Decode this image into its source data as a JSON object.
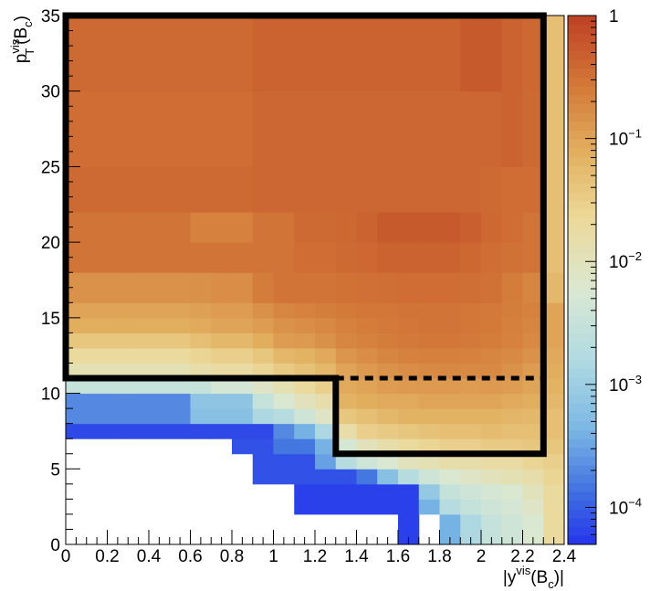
{
  "chart_data": {
    "type": "heatmap",
    "title": "",
    "x_bins": [
      0,
      0.3,
      0.6,
      0.7,
      0.8,
      0.9,
      1.0,
      1.1,
      1.2,
      1.3,
      1.4,
      1.5,
      1.6,
      1.7,
      1.8,
      1.9,
      2.0,
      2.1,
      2.2,
      2.3,
      2.4
    ],
    "y_bins": [
      0,
      2,
      3,
      4,
      5,
      6,
      7,
      8,
      9,
      10,
      11,
      12,
      13,
      14,
      15,
      16,
      18,
      20,
      22,
      25,
      30,
      35
    ],
    "xlim": [
      0,
      2.4
    ],
    "ylim": [
      0,
      35
    ],
    "zlim": [
      5e-05,
      1
    ],
    "z_log": true,
    "xlabel": {
      "main": "|y",
      "sup": "vis",
      "mid": "(B",
      "sub": "c",
      "end": ")|"
    },
    "ylabel": {
      "main": "p",
      "sup": "vis",
      "sub": "T",
      "mid": "(B",
      "sub2": "c",
      "end": ")"
    },
    "x_ticks": [
      0,
      0.2,
      0.4,
      0.6,
      0.8,
      1,
      1.2,
      1.4,
      1.6,
      1.8,
      2,
      2.2,
      2.4
    ],
    "x_tick_labels": [
      "0",
      "0.2",
      "0.4",
      "0.6",
      "0.8",
      "1",
      "1.2",
      "1.4",
      "1.6",
      "1.8",
      "2",
      "2.2",
      "2.4"
    ],
    "y_ticks": [
      0,
      5,
      10,
      15,
      20,
      25,
      30,
      35
    ],
    "y_tick_labels": [
      "0",
      "5",
      "10",
      "15",
      "20",
      "25",
      "30",
      "35"
    ],
    "palette_ticks": [
      {
        "value": 1,
        "label": "1"
      },
      {
        "value": 0.1,
        "label": "10",
        "exp": "−1"
      },
      {
        "value": 0.01,
        "label": "10",
        "exp": "−2"
      },
      {
        "value": 0.001,
        "label": "10",
        "exp": "−3"
      },
      {
        "value": 0.0001,
        "label": "10",
        "exp": "−4"
      }
    ],
    "z": [
      [
        0,
        0,
        0,
        0,
        0,
        0,
        0,
        0,
        0,
        0,
        0,
        0,
        6e-05,
        0,
        0.0004,
        0.0015,
        0.003,
        0.004,
        0.006,
        0.02
      ],
      [
        0,
        0,
        0,
        0,
        0,
        0,
        0,
        6e-05,
        6e-05,
        6e-05,
        6e-05,
        6e-05,
        6e-05,
        0.0004,
        0.002,
        0.003,
        0.004,
        0.005,
        0.008,
        0.02
      ],
      [
        0,
        0,
        0,
        0,
        0,
        0,
        0,
        6e-05,
        6e-05,
        6e-05,
        6e-05,
        6e-05,
        6e-05,
        0.0008,
        0.003,
        0.004,
        0.005,
        0.006,
        0.01,
        0.02
      ],
      [
        0,
        0,
        0,
        0,
        0,
        8e-05,
        8e-05,
        8e-05,
        8e-05,
        8e-05,
        0.00015,
        0.0006,
        0.002,
        0.004,
        0.006,
        0.008,
        0.01,
        0.012,
        0.015,
        0.025
      ],
      [
        0,
        0,
        0,
        0,
        0,
        8e-05,
        8e-05,
        8e-05,
        0.0003,
        0.002,
        0.004,
        0.006,
        0.01,
        0.012,
        0.015,
        0.015,
        0.018,
        0.018,
        0.025,
        0.03
      ],
      [
        0,
        0,
        0,
        0,
        8e-05,
        8e-05,
        0.00015,
        0.00015,
        0.0004,
        0.005,
        0.01,
        0.015,
        0.02,
        0.025,
        0.03,
        0.03,
        0.035,
        0.035,
        0.04,
        0.04
      ],
      [
        7e-05,
        7e-05,
        7e-05,
        7e-05,
        7e-05,
        7e-05,
        0.0002,
        0.0004,
        0.0015,
        0.015,
        0.03,
        0.035,
        0.04,
        0.045,
        0.05,
        0.05,
        0.055,
        0.05,
        0.05,
        0.05
      ],
      [
        0.0002,
        0.0002,
        0.0006,
        0.0006,
        0.0006,
        0.0015,
        0.002,
        0.004,
        0.008,
        0.04,
        0.05,
        0.06,
        0.07,
        0.07,
        0.07,
        0.07,
        0.07,
        0.065,
        0.06,
        0.05
      ],
      [
        0.0002,
        0.0002,
        0.0007,
        0.0007,
        0.0007,
        0.003,
        0.006,
        0.01,
        0.015,
        0.07,
        0.08,
        0.09,
        0.09,
        0.1,
        0.1,
        0.1,
        0.1,
        0.09,
        0.08,
        0.06
      ],
      [
        0.003,
        0.003,
        0.003,
        0.005,
        0.005,
        0.008,
        0.012,
        0.02,
        0.03,
        0.09,
        0.1,
        0.12,
        0.13,
        0.13,
        0.13,
        0.12,
        0.13,
        0.12,
        0.1,
        0.07
      ],
      [
        0.012,
        0.012,
        0.015,
        0.018,
        0.018,
        0.025,
        0.035,
        0.045,
        0.06,
        0.1,
        0.13,
        0.15,
        0.17,
        0.18,
        0.19,
        0.18,
        0.18,
        0.15,
        0.12,
        0.08
      ],
      [
        0.02,
        0.02,
        0.025,
        0.03,
        0.03,
        0.04,
        0.06,
        0.07,
        0.09,
        0.14,
        0.17,
        0.2,
        0.22,
        0.23,
        0.23,
        0.22,
        0.2,
        0.18,
        0.15,
        0.09
      ],
      [
        0.04,
        0.04,
        0.05,
        0.06,
        0.06,
        0.08,
        0.12,
        0.13,
        0.16,
        0.2,
        0.22,
        0.25,
        0.27,
        0.28,
        0.28,
        0.27,
        0.25,
        0.22,
        0.18,
        0.1
      ],
      [
        0.08,
        0.08,
        0.09,
        0.1,
        0.1,
        0.12,
        0.15,
        0.17,
        0.19,
        0.22,
        0.25,
        0.27,
        0.28,
        0.3,
        0.3,
        0.28,
        0.26,
        0.23,
        0.2,
        0.1
      ],
      [
        0.1,
        0.1,
        0.11,
        0.12,
        0.12,
        0.16,
        0.2,
        0.22,
        0.24,
        0.26,
        0.28,
        0.28,
        0.3,
        0.3,
        0.3,
        0.28,
        0.27,
        0.24,
        0.22,
        0.1
      ],
      [
        0.15,
        0.15,
        0.16,
        0.17,
        0.17,
        0.25,
        0.3,
        0.3,
        0.3,
        0.32,
        0.33,
        0.34,
        0.35,
        0.35,
        0.35,
        0.34,
        0.32,
        0.25,
        0.2,
        0.06
      ],
      [
        0.3,
        0.3,
        0.3,
        0.3,
        0.3,
        0.3,
        0.3,
        0.35,
        0.35,
        0.38,
        0.4,
        0.45,
        0.45,
        0.45,
        0.45,
        0.4,
        0.35,
        0.32,
        0.3,
        0.05
      ],
      [
        0.3,
        0.3,
        0.22,
        0.22,
        0.22,
        0.3,
        0.3,
        0.38,
        0.38,
        0.4,
        0.45,
        0.55,
        0.55,
        0.55,
        0.55,
        0.5,
        0.4,
        0.35,
        0.3,
        0.05
      ],
      [
        0.38,
        0.38,
        0.38,
        0.38,
        0.38,
        0.42,
        0.42,
        0.42,
        0.42,
        0.42,
        0.42,
        0.42,
        0.42,
        0.42,
        0.42,
        0.42,
        0.38,
        0.35,
        0.35,
        0.05
      ],
      [
        0.35,
        0.35,
        0.35,
        0.35,
        0.35,
        0.42,
        0.42,
        0.42,
        0.42,
        0.42,
        0.42,
        0.42,
        0.42,
        0.42,
        0.42,
        0.42,
        0.42,
        0.45,
        0.38,
        0.05
      ],
      [
        0.38,
        0.38,
        0.38,
        0.38,
        0.38,
        0.45,
        0.45,
        0.45,
        0.45,
        0.45,
        0.45,
        0.45,
        0.45,
        0.45,
        0.45,
        0.55,
        0.55,
        0.45,
        0.4,
        0.05
      ]
    ],
    "regions": {
      "inner": {
        "polyline": [
          [
            0,
            35
          ],
          [
            2.3,
            35
          ],
          [
            2.3,
            6
          ],
          [
            1.3,
            6
          ],
          [
            1.3,
            11
          ],
          [
            0,
            11
          ]
        ],
        "closed": true,
        "style": "solid"
      },
      "dashed_line": {
        "from": [
          1.3,
          11
        ],
        "to": [
          2.3,
          11
        ],
        "style": "dashed"
      }
    }
  }
}
